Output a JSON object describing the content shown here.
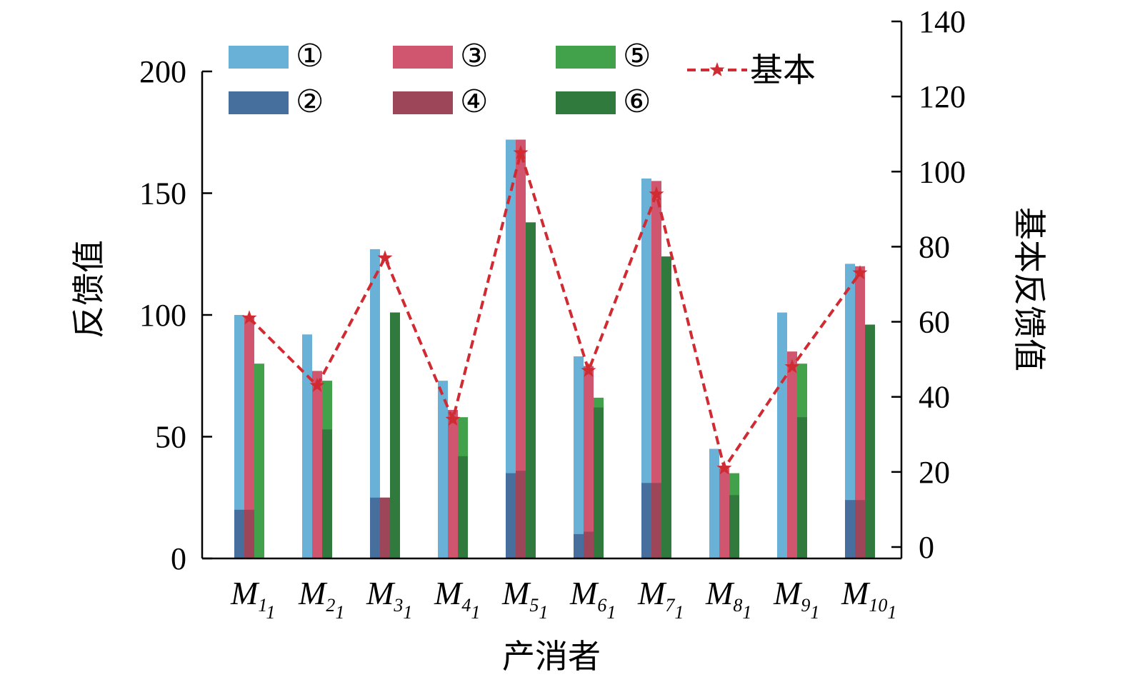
{
  "chart_data": {
    "type": "bar",
    "xlabel": "产消者",
    "ylabel": "反馈值",
    "ylabel_right": "基本反馈值",
    "ylim": [
      0,
      200
    ],
    "ylim_right": [
      0,
      140
    ],
    "yticks": [
      "0",
      "50",
      "100",
      "150",
      "200"
    ],
    "yticks_right": [
      "0",
      "20",
      "40",
      "60",
      "80",
      "100",
      "120",
      "140"
    ],
    "categories": [
      {
        "main": "M",
        "sub1": "1",
        "sub2": "1"
      },
      {
        "main": "M",
        "sub1": "2",
        "sub2": "1"
      },
      {
        "main": "M",
        "sub1": "3",
        "sub2": "1"
      },
      {
        "main": "M",
        "sub1": "4",
        "sub2": "1"
      },
      {
        "main": "M",
        "sub1": "5",
        "sub2": "1"
      },
      {
        "main": "M",
        "sub1": "6",
        "sub2": "1"
      },
      {
        "main": "M",
        "sub1": "7",
        "sub2": "1"
      },
      {
        "main": "M",
        "sub1": "8",
        "sub2": "1"
      },
      {
        "main": "M",
        "sub1": "9",
        "sub2": "1"
      },
      {
        "main": "M",
        "sub1": "10",
        "sub2": "1"
      }
    ],
    "series": [
      {
        "name": "①",
        "color": "#6ab1d8",
        "values": [
          100,
          92,
          127,
          73,
          172,
          83,
          156,
          45,
          101,
          121
        ]
      },
      {
        "name": "②",
        "color": "#466f9d",
        "values": [
          20,
          0,
          25,
          0,
          35,
          10,
          31,
          0,
          0,
          24
        ]
      },
      {
        "name": "③",
        "color": "#cf566e",
        "values": [
          99,
          77,
          25,
          61,
          172,
          79,
          155,
          37,
          85,
          120
        ]
      },
      {
        "name": "④",
        "color": "#9e4659",
        "values": [
          20,
          0,
          25,
          0,
          36,
          11,
          31,
          0,
          0,
          24
        ]
      },
      {
        "name": "⑤",
        "color": "#42a24b",
        "values": [
          80,
          73,
          101,
          58,
          138,
          66,
          124,
          35,
          80,
          96
        ]
      },
      {
        "name": "⑥",
        "color": "#317a3e",
        "values": [
          0,
          53,
          101,
          42,
          138,
          62,
          124,
          26,
          58,
          96
        ]
      }
    ],
    "line_series": {
      "name": "基本",
      "color": "#d02b32",
      "axis": "right",
      "values": [
        61,
        43,
        77,
        34,
        105,
        47,
        94,
        21,
        48,
        73
      ]
    },
    "legend_position": "top"
  }
}
